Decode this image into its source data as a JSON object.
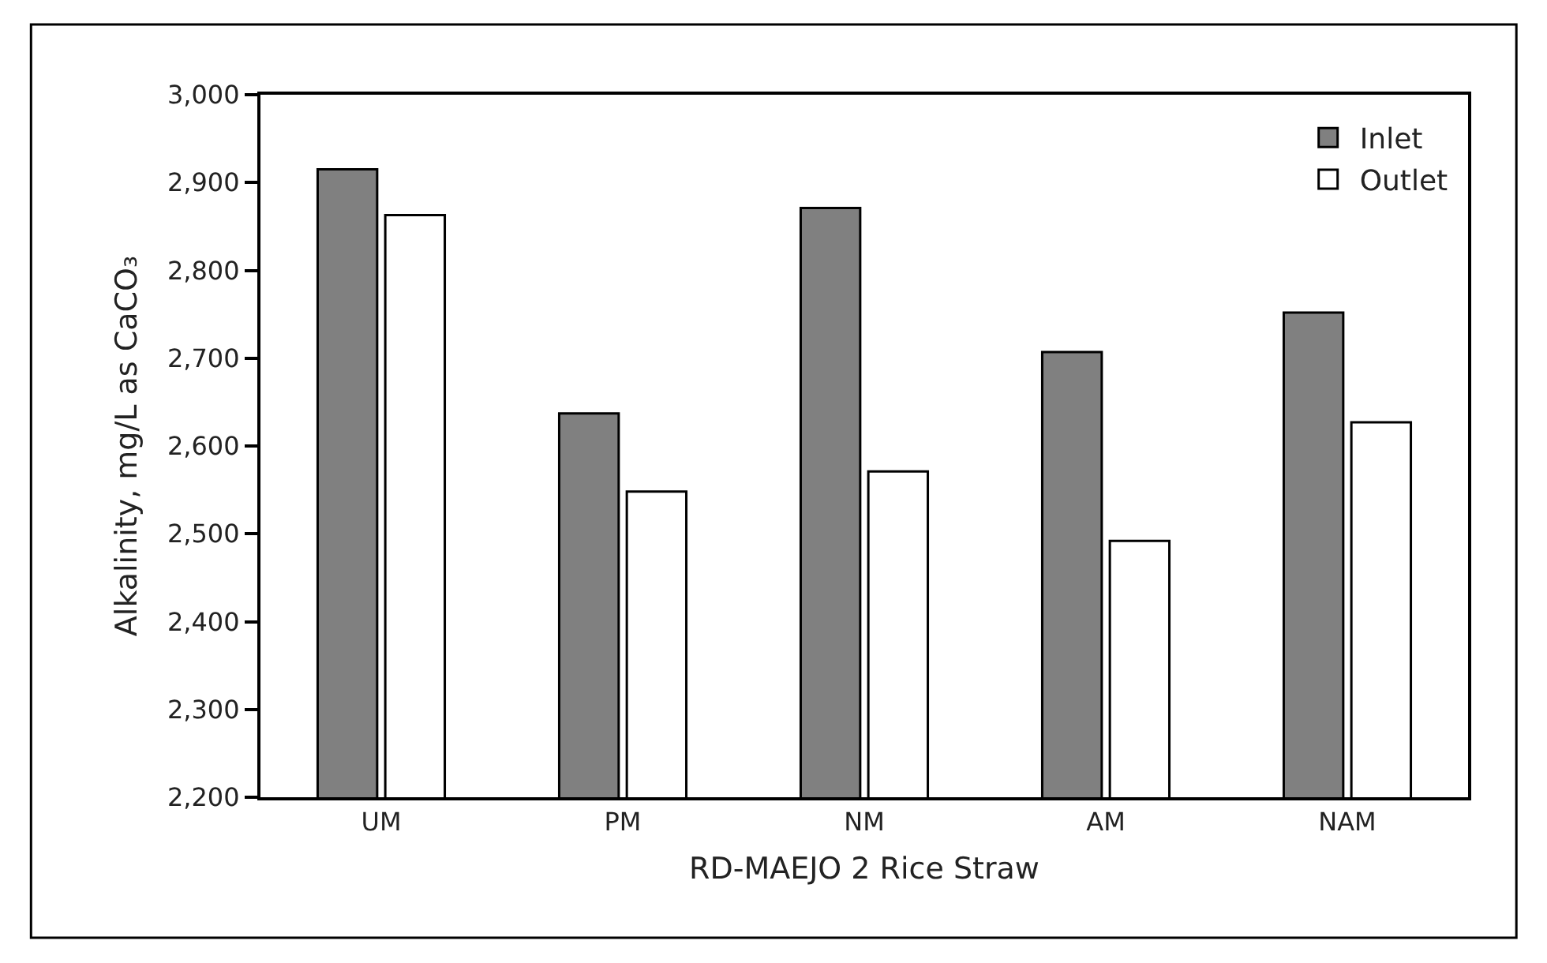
{
  "chart_data": {
    "type": "bar",
    "xlabel": "RD-MAEJO 2 Rice Straw",
    "ylabel": "Alkalinity, mg/L as CaCO₃",
    "categories": [
      "UM",
      "PM",
      "NM",
      "AM",
      "NAM"
    ],
    "series": [
      {
        "name": "Inlet",
        "color": "#808080",
        "values": [
          2915,
          2637,
          2871,
          2707,
          2752
        ]
      },
      {
        "name": "Outlet",
        "color": "#ffffff",
        "values": [
          2863,
          2548,
          2571,
          2492,
          2627
        ]
      }
    ],
    "ylim": [
      2200,
      3000
    ],
    "yticks": [
      {
        "value": 2200,
        "label": "2,200"
      },
      {
        "value": 2300,
        "label": "2,300"
      },
      {
        "value": 2400,
        "label": "2,400"
      },
      {
        "value": 2500,
        "label": "2,500"
      },
      {
        "value": 2600,
        "label": "2,600"
      },
      {
        "value": 2700,
        "label": "2,700"
      },
      {
        "value": 2800,
        "label": "2,800"
      },
      {
        "value": 2900,
        "label": "2,900"
      },
      {
        "value": 3000,
        "label": "3,000"
      }
    ],
    "grid": false,
    "legend": "top right"
  }
}
